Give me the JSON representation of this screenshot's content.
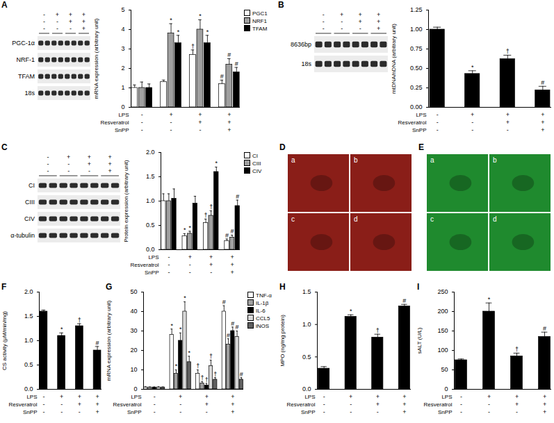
{
  "treatments": [
    {
      "name": "LPS",
      "signs": [
        "-",
        "+",
        "+",
        "+"
      ]
    },
    {
      "name": "Resveratrol",
      "signs": [
        "-",
        "-",
        "+",
        "+"
      ]
    },
    {
      "name": "SnPP",
      "signs": [
        "-",
        "-",
        "-",
        "+"
      ]
    }
  ],
  "gels": [
    {
      "panel": "A",
      "lanes_per_group": 2,
      "rows": [
        "PGC-1α",
        "NRF-1",
        "TFAM",
        "18s"
      ]
    },
    {
      "panel": "B",
      "lanes_per_group": 2,
      "rows": [
        "8636bp",
        "18s"
      ]
    },
    {
      "panel": "C",
      "lanes_per_group": 2,
      "rows": [
        "CI",
        "CIII",
        "CIV",
        "α-tubulin"
      ]
    }
  ],
  "images": [
    {
      "panel": "D",
      "color": "#8a1e18",
      "subpanels": [
        "a",
        "b",
        "c",
        "d"
      ]
    },
    {
      "panel": "E",
      "color": "#1f8a2e",
      "subpanels": [
        "a",
        "b",
        "c",
        "d"
      ]
    }
  ],
  "chart_data": [
    {
      "panel": "A",
      "type": "bar",
      "y_label": "mRNA expression (arbitrary unit)",
      "categories": [
        null,
        null,
        null,
        null
      ],
      "ylim": [
        0,
        5
      ],
      "yticks": [
        0,
        1,
        2,
        3,
        4,
        5
      ],
      "series": [
        {
          "name": "PGC1",
          "color": "#ffffff",
          "values": [
            1.0,
            1.3,
            2.7,
            1.2
          ],
          "errors": [
            0.15,
            0.1,
            0.25,
            0.2
          ],
          "significance": [
            null,
            null,
            "†",
            "#"
          ]
        },
        {
          "name": "NRF1",
          "color": "#a0a0a0",
          "values": [
            1.0,
            3.8,
            4.0,
            2.2
          ],
          "errors": [
            0.3,
            0.5,
            0.5,
            0.3
          ],
          "significance": [
            null,
            "*",
            "*",
            "#"
          ]
        },
        {
          "name": "TFAM",
          "color": "#000000",
          "values": [
            1.0,
            3.3,
            3.3,
            1.8
          ],
          "errors": [
            0.2,
            0.4,
            0.4,
            0.25
          ],
          "significance": [
            null,
            "*",
            "*",
            "#"
          ]
        }
      ]
    },
    {
      "panel": "B",
      "type": "bar",
      "y_label": "mtDNA/nDNA (arbitrary unit)",
      "categories": [
        null,
        null,
        null,
        null
      ],
      "ylim": [
        0,
        1.25
      ],
      "yticks": [
        {
          "value": 0,
          "label": "0.00"
        },
        0.25,
        {
          "value": 0.5,
          "label": "0.50"
        },
        0.75,
        {
          "value": 1,
          "label": "1.00"
        },
        1.25
      ],
      "color": "#000000",
      "values": [
        1.0,
        0.43,
        0.62,
        0.22
      ],
      "errors": [
        0.03,
        0.04,
        0.05,
        0.05
      ],
      "significance": [
        null,
        "*",
        "†",
        "#"
      ]
    },
    {
      "panel": "C",
      "type": "bar",
      "y_label": "Protein expression (arbitrary unit)",
      "categories": [
        null,
        null,
        null,
        null
      ],
      "ylim": [
        0,
        2
      ],
      "yticks": [
        {
          "value": 0,
          "label": "0.0"
        },
        0.5,
        {
          "value": 1,
          "label": "1.0"
        },
        1.5,
        {
          "value": 2,
          "label": "2.0"
        }
      ],
      "series": [
        {
          "name": "CI",
          "color": "#ffffff",
          "values": [
            1.0,
            0.28,
            0.55,
            0.18
          ],
          "errors": [
            0.15,
            0.05,
            0.08,
            0.04
          ],
          "significance": [
            null,
            "*",
            "†",
            "#"
          ]
        },
        {
          "name": "CIII",
          "color": "#a0a0a0",
          "values": [
            1.0,
            0.33,
            0.7,
            0.25
          ],
          "errors": [
            0.15,
            0.05,
            0.1,
            0.05
          ],
          "significance": [
            null,
            "*",
            "†",
            "#"
          ]
        },
        {
          "name": "CIV",
          "color": "#000000",
          "values": [
            1.05,
            0.95,
            1.6,
            0.9
          ],
          "errors": [
            0.2,
            0.15,
            0.1,
            0.12
          ],
          "significance": [
            null,
            null,
            "*",
            "#"
          ]
        }
      ]
    },
    {
      "panel": "F",
      "type": "bar",
      "y_label": "CS activity (μM/min/mg)",
      "categories": [
        null,
        null,
        null,
        null
      ],
      "ylim": [
        0,
        2
      ],
      "yticks": [
        {
          "value": 0,
          "label": "0.0"
        },
        0.5,
        {
          "value": 1,
          "label": "1.0"
        },
        1.5,
        {
          "value": 2,
          "label": "2.0"
        }
      ],
      "color": "#000000",
      "values": [
        1.6,
        1.1,
        1.3,
        0.8
      ],
      "errors": [
        0.03,
        0.06,
        0.05,
        0.08
      ],
      "significance": [
        null,
        "*",
        "†",
        "#"
      ]
    },
    {
      "panel": "G",
      "type": "bar",
      "y_label": "mRNA expression (arbitrary unit)",
      "categories": [
        null,
        null,
        null,
        null
      ],
      "ylim": [
        0,
        50
      ],
      "yticks": [
        0,
        10,
        20,
        30,
        40,
        50
      ],
      "series": [
        {
          "name": "TNF-α",
          "color": "#ffffff",
          "values": [
            1,
            28,
            8,
            40
          ],
          "errors": [
            0.3,
            3,
            2,
            3
          ],
          "significance": [
            null,
            "*",
            "†",
            "#"
          ]
        },
        {
          "name": "IL-1β",
          "color": "#a0a0a0",
          "values": [
            1,
            8,
            3,
            23
          ],
          "errors": [
            0.2,
            2,
            1,
            3
          ],
          "significance": [
            null,
            "*",
            "†",
            "#"
          ]
        },
        {
          "name": "IL-6",
          "color": "#000000",
          "values": [
            1,
            25,
            2,
            30
          ],
          "errors": [
            0.2,
            4,
            1,
            2
          ],
          "significance": [
            null,
            "*",
            "†",
            "#"
          ]
        },
        {
          "name": "CCL5",
          "color": "#d9d9d9",
          "values": [
            1,
            40,
            12,
            27
          ],
          "errors": [
            0.3,
            5,
            3,
            3
          ],
          "significance": [
            null,
            "*",
            "†",
            "#"
          ]
        },
        {
          "name": "iNOS",
          "color": "#606060",
          "values": [
            1,
            14,
            5,
            5
          ],
          "errors": [
            0.2,
            3,
            1,
            1
          ],
          "significance": [
            null,
            "*",
            "†",
            "#"
          ]
        }
      ]
    },
    {
      "panel": "H",
      "type": "bar",
      "y_label": "MPO (ng/mg protein)",
      "categories": [
        null,
        null,
        null,
        null
      ],
      "ylim": [
        0,
        1.5
      ],
      "yticks": [
        {
          "value": 0,
          "label": "0.0"
        },
        0.5,
        {
          "value": 1,
          "label": "1.0"
        },
        1.5
      ],
      "color": "#000000",
      "values": [
        0.32,
        1.12,
        0.8,
        1.28
      ],
      "errors": [
        0.03,
        0.03,
        0.05,
        0.03
      ],
      "significance": [
        null,
        "*",
        "†",
        "#"
      ]
    },
    {
      "panel": "I",
      "type": "bar",
      "y_label": "sALT (U/L)",
      "categories": [
        null,
        null,
        null,
        null
      ],
      "ylim": [
        0,
        250
      ],
      "yticks": [
        0,
        50,
        100,
        150,
        200,
        250
      ],
      "color": "#000000",
      "values": [
        75,
        200,
        85,
        135
      ],
      "errors": [
        3,
        22,
        8,
        12
      ],
      "significance": [
        null,
        "*",
        "†",
        "#"
      ]
    }
  ]
}
